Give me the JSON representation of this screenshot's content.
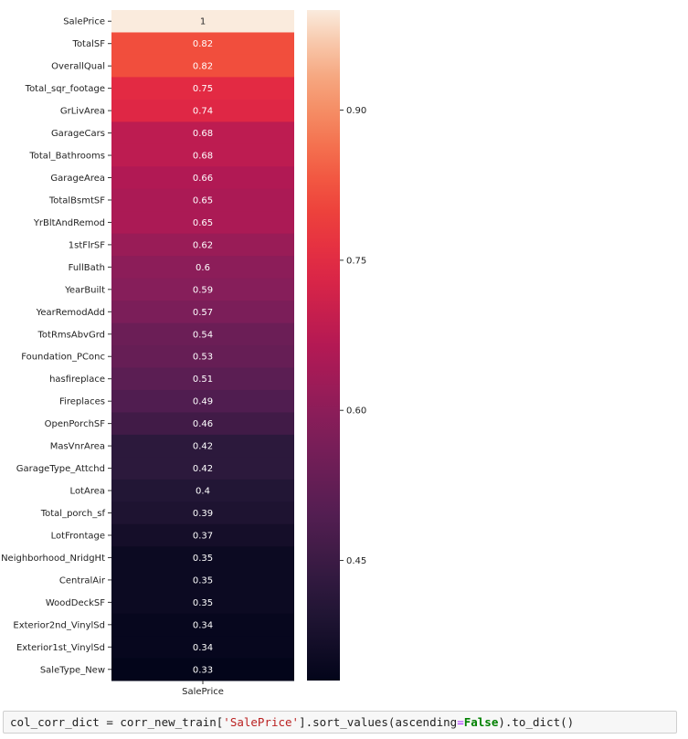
{
  "chart_data": {
    "type": "heatmap",
    "xlabel": "",
    "ylabel": "",
    "x_tick_label": "SalePrice",
    "categories": [
      "SalePrice",
      "TotalSF",
      "OverallQual",
      "Total_sqr_footage",
      "GrLivArea",
      "GarageCars",
      "Total_Bathrooms",
      "GarageArea",
      "TotalBsmtSF",
      "YrBltAndRemod",
      "1stFlrSF",
      "FullBath",
      "YearBuilt",
      "YearRemodAdd",
      "TotRmsAbvGrd",
      "Foundation_PConc",
      "hasfireplace",
      "Fireplaces",
      "OpenPorchSF",
      "MasVnrArea",
      "GarageType_Attchd",
      "LotArea",
      "Total_porch_sf",
      "LotFrontage",
      "Neighborhood_NridgHt",
      "CentralAir",
      "WoodDeckSF",
      "Exterior2nd_VinylSd",
      "Exterior1st_VinylSd",
      "SaleType_New"
    ],
    "values": [
      1,
      0.82,
      0.82,
      0.75,
      0.74,
      0.68,
      0.68,
      0.66,
      0.65,
      0.65,
      0.62,
      0.6,
      0.59,
      0.57,
      0.54,
      0.53,
      0.51,
      0.49,
      0.46,
      0.42,
      0.42,
      0.4,
      0.39,
      0.37,
      0.35,
      0.35,
      0.35,
      0.34,
      0.34,
      0.33
    ],
    "value_labels": [
      "1",
      "0.82",
      "0.82",
      "0.75",
      "0.74",
      "0.68",
      "0.68",
      "0.66",
      "0.65",
      "0.65",
      "0.62",
      "0.6",
      "0.59",
      "0.57",
      "0.54",
      "0.53",
      "0.51",
      "0.49",
      "0.46",
      "0.42",
      "0.42",
      "0.4",
      "0.39",
      "0.37",
      "0.35",
      "0.35",
      "0.35",
      "0.34",
      "0.34",
      "0.33"
    ],
    "colormap": "rocket",
    "colorbar": {
      "range": [
        0.33,
        1.0
      ],
      "ticks": [
        0.45,
        0.6,
        0.75,
        0.9
      ],
      "tick_labels": [
        "0.45",
        "0.60",
        "0.75",
        "0.90"
      ]
    }
  },
  "code_cell": {
    "prefix": "col_corr_dict = corr_new_train[",
    "string": "'SalePrice'",
    "middle": "].sort_values(ascending",
    "op": "=",
    "keyword": "False",
    "suffix": ").to_dict()"
  }
}
